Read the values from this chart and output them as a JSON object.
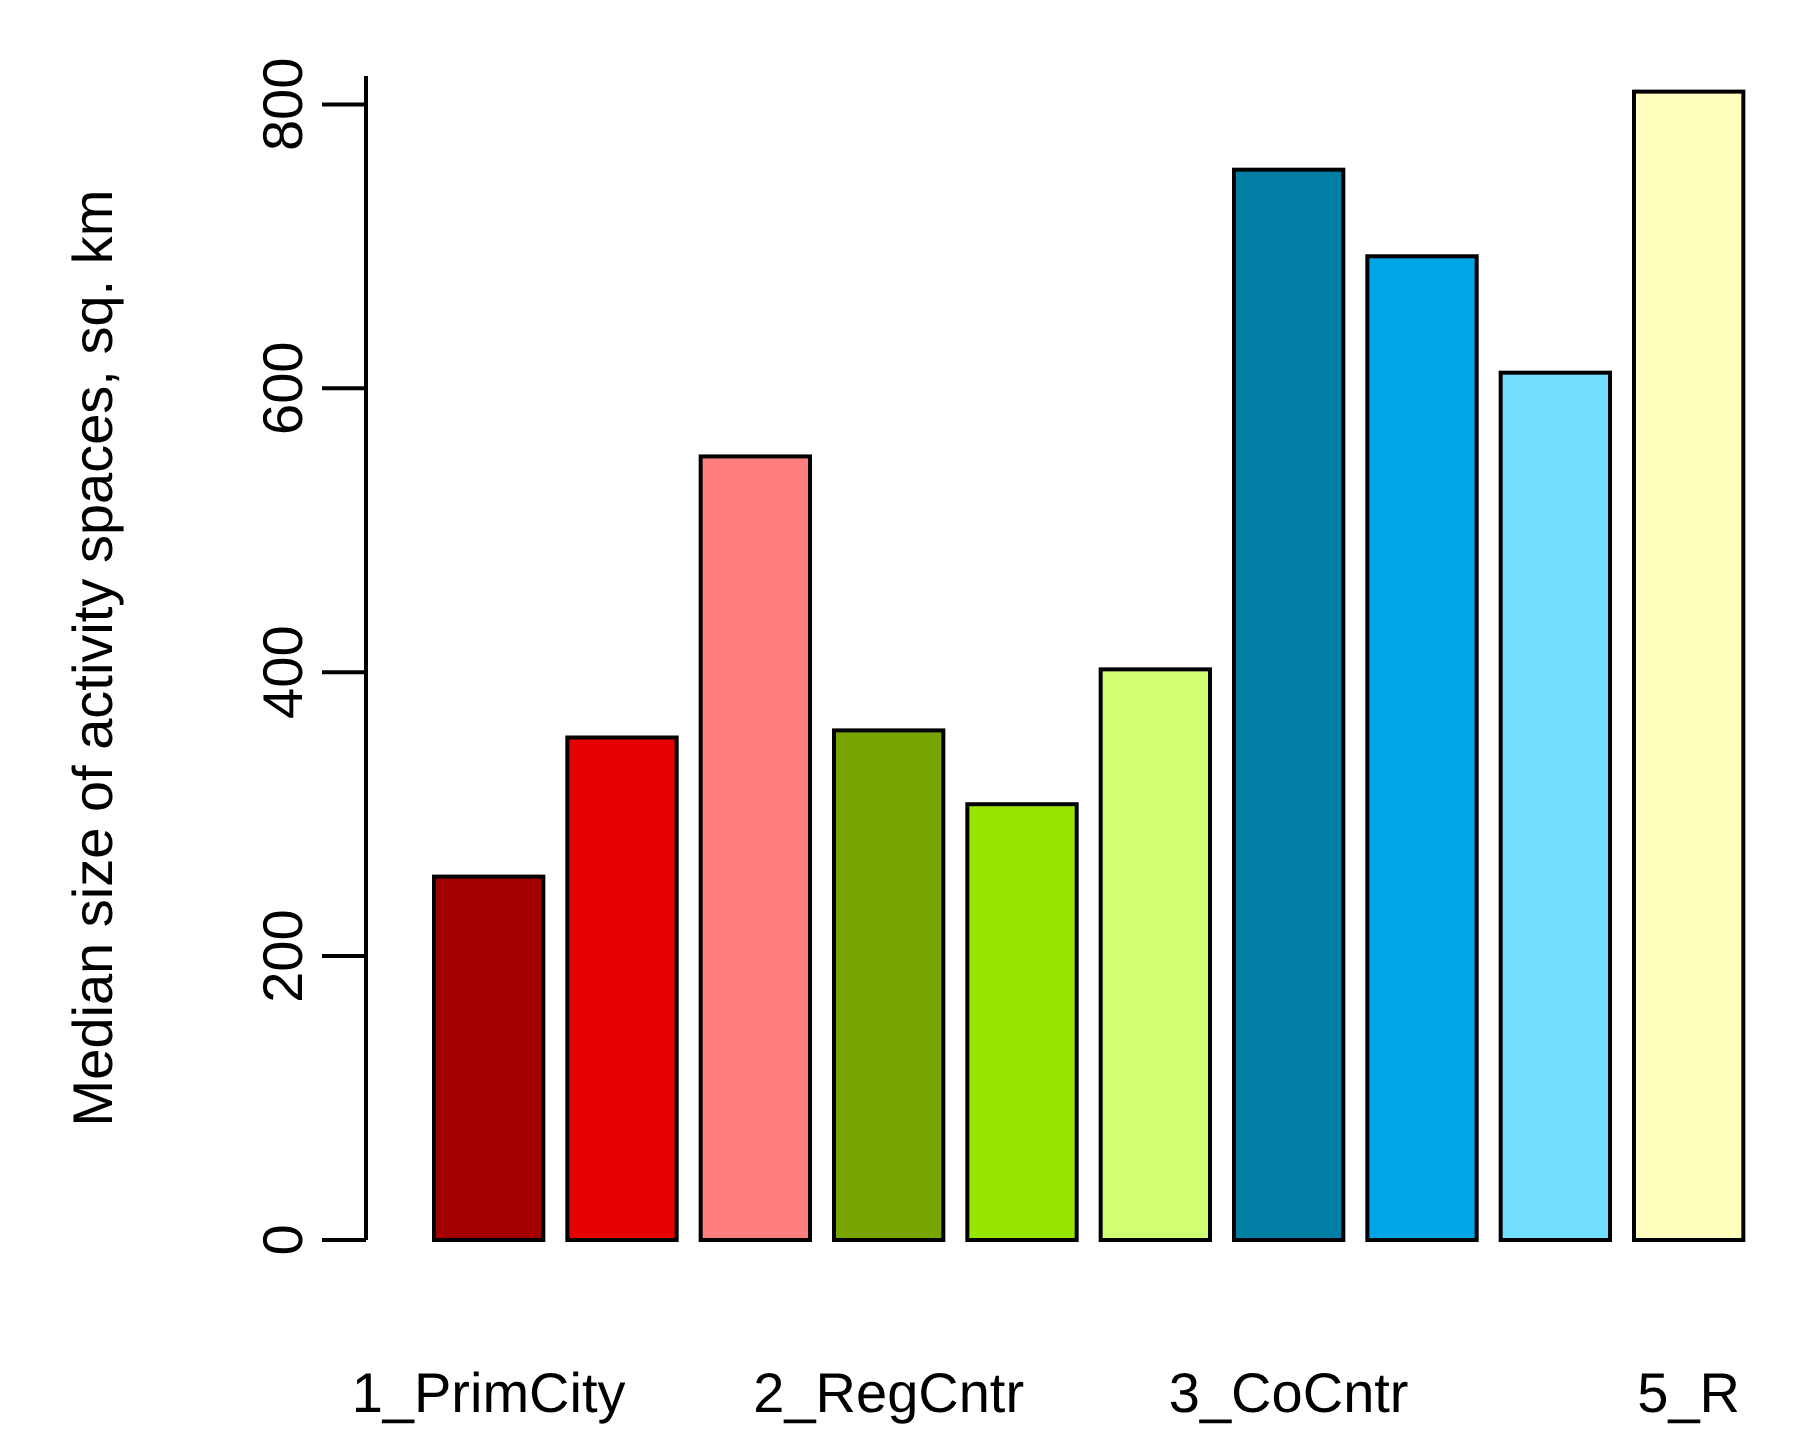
{
  "chart_data": {
    "type": "bar",
    "ylabel": "Median size of activity spaces, sq. km",
    "categories": [
      "1_PrimCity",
      null,
      null,
      "2_RegCntr",
      null,
      null,
      "3_CoCntr",
      null,
      null,
      "5_R"
    ],
    "values": [
      256,
      354,
      552,
      359,
      307,
      402,
      754,
      693,
      611,
      809
    ],
    "colors": [
      "#a50000",
      "#e60000",
      "#ff7f7f",
      "#78a500",
      "#98e600",
      "#d1ff73",
      "#007ea3",
      "#00a6e6",
      "#73dfff",
      "#ffffbe"
    ],
    "ylim": [
      0,
      820
    ],
    "yticks": [
      0,
      200,
      400,
      600,
      800
    ],
    "grid": false
  }
}
